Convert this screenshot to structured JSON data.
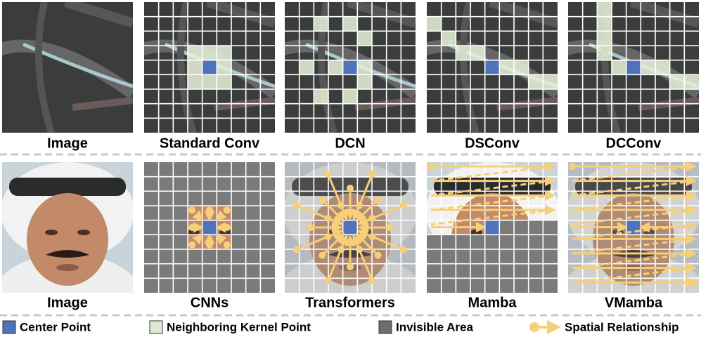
{
  "top_row": {
    "labels": [
      "Image",
      "Standard Conv",
      "DCN",
      "DSConv",
      "DCConv"
    ]
  },
  "bottom_row": {
    "labels": [
      "Image",
      "CNNs",
      "Transformers",
      "Mamba",
      "VMamba"
    ]
  },
  "legend": {
    "items": [
      "Center Point",
      "Neighboring Kernel Point",
      "Invisible Area",
      "Spatial Relationship"
    ]
  }
}
